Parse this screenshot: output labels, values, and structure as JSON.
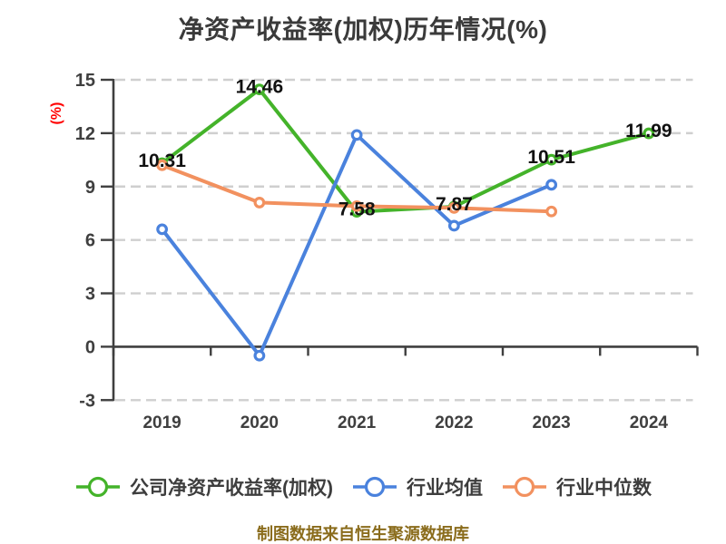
{
  "chart_data": {
    "type": "line",
    "title": "净资产收益率(加权)历年情况(%)",
    "ylabel": "(%)",
    "xlabel": "",
    "categories": [
      "2019",
      "2020",
      "2021",
      "2022",
      "2023",
      "2024"
    ],
    "ylim": [
      -3,
      15
    ],
    "yticks": [
      15,
      12,
      9,
      6,
      3,
      0,
      -3
    ],
    "grid": "dashed-horizontal",
    "legend_position": "bottom",
    "series": [
      {
        "key": "company-roe-weighted",
        "name": "公司净资产收益率(加权)",
        "color": "#44b32a",
        "values": [
          10.31,
          14.46,
          7.58,
          7.87,
          10.51,
          11.99
        ],
        "data_labels": [
          "10.31",
          "14.46",
          "7.58",
          "7.87",
          "10.51",
          "11.99"
        ]
      },
      {
        "key": "industry-average",
        "name": "行业均值",
        "color": "#4a82dd",
        "values": [
          6.6,
          -0.5,
          11.9,
          6.8,
          9.1,
          null
        ],
        "data_labels": null
      },
      {
        "key": "industry-median",
        "name": "行业中位数",
        "color": "#f2915f",
        "values": [
          10.2,
          8.1,
          7.9,
          7.8,
          7.6,
          null
        ],
        "data_labels": null
      }
    ]
  },
  "footer": {
    "text": "制图数据来自恒生聚源数据库"
  },
  "colors": {
    "background": "#ffffff",
    "axis": "#3f3f3f",
    "gridline": "#cfcfcf",
    "data_label": "#111111",
    "title": "#3a3a3a",
    "y_unit": "#ff0000",
    "footer": "#8a6c1c"
  }
}
